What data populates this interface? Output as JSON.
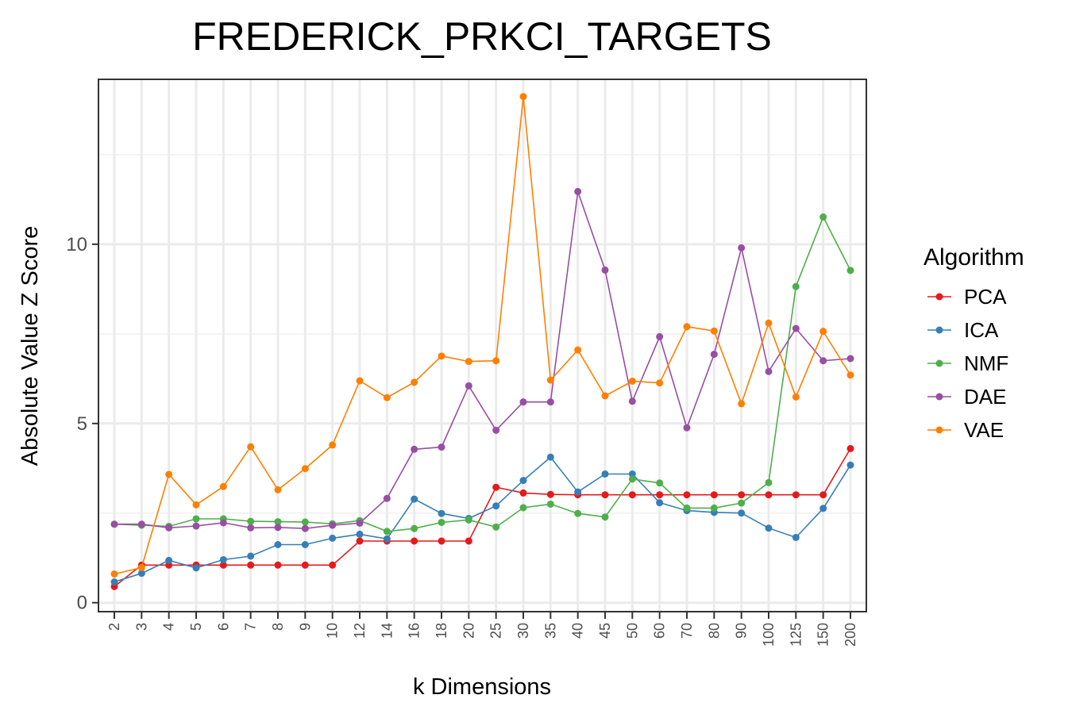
{
  "chart_data": {
    "type": "line",
    "title": "FREDERICK_PRKCI_TARGETS",
    "xlabel": "k Dimensions",
    "ylabel": "Absolute Value Z Score",
    "categories": [
      "2",
      "3",
      "4",
      "5",
      "6",
      "7",
      "8",
      "9",
      "10",
      "12",
      "14",
      "16",
      "18",
      "20",
      "25",
      "30",
      "35",
      "40",
      "45",
      "50",
      "60",
      "70",
      "80",
      "90",
      "100",
      "125",
      "150",
      "200"
    ],
    "yticks": [
      "0",
      "5",
      "10"
    ],
    "ylim": [
      -0.25,
      14.6
    ],
    "grid": true,
    "legend": {
      "title": "Algorithm",
      "placement": "right"
    },
    "series": [
      {
        "name": "PCA",
        "color": "#E41A1C",
        "values": [
          0.45,
          1.05,
          1.05,
          1.05,
          1.05,
          1.05,
          1.05,
          1.05,
          1.05,
          1.72,
          1.72,
          1.72,
          1.72,
          1.72,
          3.22,
          3.06,
          3.02,
          3.01,
          3.01,
          3.01,
          3.01,
          3.01,
          3.01,
          3.01,
          3.01,
          3.01,
          3.01,
          4.3
        ]
      },
      {
        "name": "ICA",
        "color": "#377EB8",
        "values": [
          0.58,
          0.82,
          1.18,
          0.97,
          1.2,
          1.3,
          1.62,
          1.62,
          1.8,
          1.91,
          1.78,
          2.89,
          2.49,
          2.35,
          2.7,
          3.41,
          4.06,
          3.09,
          3.59,
          3.59,
          2.79,
          2.57,
          2.52,
          2.5,
          2.08,
          1.82,
          2.63,
          3.84
        ]
      },
      {
        "name": "NMF",
        "color": "#4DAF4A",
        "values": [
          2.19,
          2.16,
          2.13,
          2.34,
          2.34,
          2.27,
          2.26,
          2.25,
          2.2,
          2.29,
          1.99,
          2.07,
          2.24,
          2.31,
          2.11,
          2.65,
          2.75,
          2.49,
          2.39,
          3.45,
          3.34,
          2.64,
          2.64,
          2.78,
          3.35,
          8.82,
          10.76,
          9.27
        ]
      },
      {
        "name": "DAE",
        "color": "#984EA3",
        "values": [
          2.19,
          2.19,
          2.09,
          2.14,
          2.23,
          2.09,
          2.1,
          2.07,
          2.16,
          2.22,
          2.91,
          4.28,
          4.34,
          6.05,
          4.81,
          5.6,
          5.6,
          11.47,
          9.28,
          5.62,
          7.42,
          4.88,
          6.93,
          9.9,
          6.45,
          7.65,
          6.75,
          6.81
        ]
      },
      {
        "name": "VAE",
        "color": "#FF7F00",
        "values": [
          0.8,
          0.98,
          3.58,
          2.73,
          3.24,
          4.35,
          3.15,
          3.74,
          4.4,
          6.19,
          5.72,
          6.15,
          6.88,
          6.73,
          6.75,
          14.12,
          6.21,
          7.05,
          5.77,
          6.18,
          6.13,
          7.7,
          7.58,
          5.55,
          7.8,
          5.74,
          7.57,
          6.35
        ]
      }
    ]
  }
}
